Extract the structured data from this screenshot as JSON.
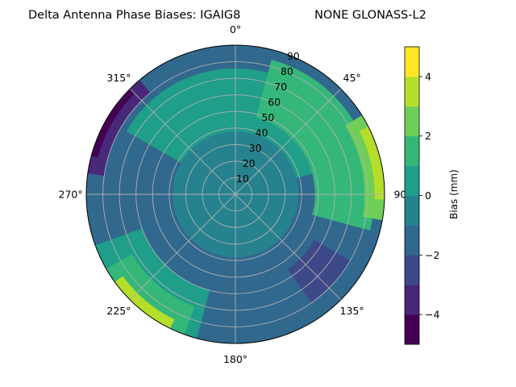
{
  "chart_data": {
    "type": "polar-contour",
    "title_left": "Delta Antenna Phase Biases: IGAIG8",
    "title_right": "NONE GLONASS-L2",
    "angular_ticks": [
      {
        "angle": 0,
        "label": "0°"
      },
      {
        "angle": 45,
        "label": "45°"
      },
      {
        "angle": 90,
        "label": "90"
      },
      {
        "angle": 135,
        "label": "135°"
      },
      {
        "angle": 180,
        "label": "180°"
      },
      {
        "angle": 225,
        "label": "225°"
      },
      {
        "angle": 270,
        "label": "270°"
      },
      {
        "angle": 315,
        "label": "315°"
      }
    ],
    "radial_ticks": [
      10,
      20,
      30,
      40,
      50,
      60,
      70,
      80,
      90
    ],
    "radial_range": [
      0,
      90
    ],
    "angular_direction": "clockwise",
    "zero_location": "north",
    "grid": true,
    "colorbar": {
      "label": "Bias (mm)",
      "range": [
        -5,
        5
      ],
      "ticks": [
        -4,
        -2,
        0,
        2,
        4
      ],
      "levels": [
        -5,
        -4,
        -3,
        -2,
        -1,
        0,
        1,
        2,
        3,
        4,
        5
      ],
      "colors": [
        "#440154",
        "#482878",
        "#3e4989",
        "#31688e",
        "#26828e",
        "#1f9e89",
        "#35b779",
        "#6ece58",
        "#b5de2b",
        "#fde725"
      ]
    },
    "contour_regions": [
      {
        "name": "base",
        "band": 3
      },
      {
        "name": "north-green",
        "band": 5,
        "az_range": [
          300,
          75
        ],
        "r_range": [
          28,
          76
        ]
      },
      {
        "name": "ne-light",
        "band": 6,
        "az_range": [
          15,
          105
        ],
        "r_range": [
          48,
          84
        ]
      },
      {
        "name": "east-yellowgreen",
        "band": 7,
        "az_range": [
          58,
          100
        ],
        "r_range": [
          78,
          90
        ]
      },
      {
        "name": "east-yellow",
        "band": 8,
        "az_range": [
          63,
          92
        ],
        "r_range": [
          84,
          90
        ]
      },
      {
        "name": "nw-dark",
        "band": 1,
        "az_range": [
          278,
          320
        ],
        "r_range": [
          80,
          90
        ]
      },
      {
        "name": "nw-darkest",
        "band": 0,
        "az_range": [
          285,
          315
        ],
        "r_range": [
          86,
          90
        ]
      },
      {
        "name": "sw-green",
        "band": 5,
        "az_range": [
          195,
          250
        ],
        "r_range": [
          60,
          90
        ]
      },
      {
        "name": "sw-light",
        "band": 6,
        "az_range": [
          200,
          240
        ],
        "r_range": [
          72,
          90
        ]
      },
      {
        "name": "sw-yellow",
        "band": 8,
        "az_range": [
          206,
          234
        ],
        "r_range": [
          84,
          90
        ]
      },
      {
        "name": "se-dark",
        "band": 2,
        "az_range": [
          120,
          145
        ],
        "r_range": [
          55,
          80
        ]
      },
      {
        "name": "center-teal",
        "band": 4,
        "az_range": [
          0,
          360
        ],
        "r_range": [
          0,
          38
        ]
      }
    ]
  }
}
